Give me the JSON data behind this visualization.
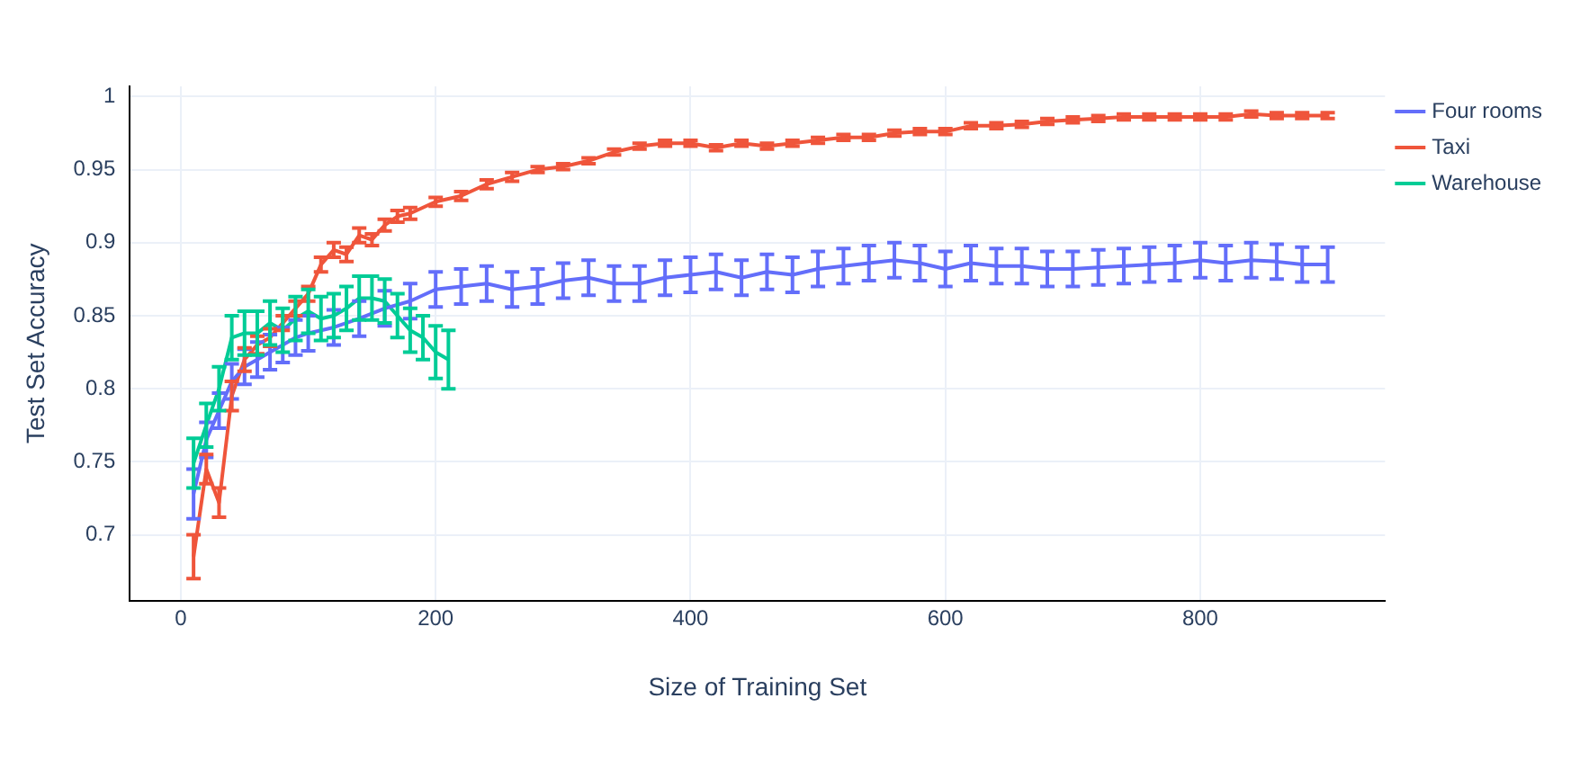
{
  "chart_data": {
    "type": "line",
    "xlabel": "Size of Training Set",
    "ylabel": "Test Set Accuracy",
    "xlim": [
      -40,
      945
    ],
    "ylim": [
      0.655,
      1.007
    ],
    "xticks": [
      0,
      200,
      400,
      600,
      800
    ],
    "yticks": [
      0.7,
      0.75,
      0.8,
      0.85,
      0.9,
      0.95,
      1
    ],
    "grid": true,
    "legend": "top right",
    "marker": "none",
    "line_style": "solid",
    "series": [
      {
        "name": "Four rooms",
        "color": "#636efa",
        "x": [
          10,
          20,
          30,
          40,
          50,
          60,
          70,
          80,
          90,
          100,
          120,
          140,
          160,
          180,
          200,
          220,
          240,
          260,
          280,
          300,
          320,
          340,
          360,
          380,
          400,
          420,
          440,
          460,
          480,
          500,
          520,
          540,
          560,
          580,
          600,
          620,
          640,
          660,
          680,
          700,
          720,
          740,
          760,
          780,
          800,
          820,
          840,
          860,
          880,
          900
        ],
        "values": [
          0.728,
          0.765,
          0.785,
          0.805,
          0.815,
          0.82,
          0.825,
          0.83,
          0.835,
          0.838,
          0.842,
          0.848,
          0.855,
          0.86,
          0.868,
          0.87,
          0.872,
          0.868,
          0.87,
          0.874,
          0.876,
          0.872,
          0.872,
          0.876,
          0.878,
          0.88,
          0.876,
          0.88,
          0.878,
          0.882,
          0.884,
          0.886,
          0.888,
          0.886,
          0.882,
          0.886,
          0.884,
          0.884,
          0.882,
          0.882,
          0.883,
          0.884,
          0.885,
          0.886,
          0.888,
          0.886,
          0.888,
          0.887,
          0.885,
          0.885
        ],
        "errors": [
          0.017,
          0.012,
          0.012,
          0.012,
          0.012,
          0.012,
          0.012,
          0.012,
          0.012,
          0.012,
          0.012,
          0.012,
          0.012,
          0.012,
          0.012,
          0.012,
          0.012,
          0.012,
          0.012,
          0.012,
          0.012,
          0.012,
          0.012,
          0.012,
          0.012,
          0.012,
          0.012,
          0.012,
          0.012,
          0.012,
          0.012,
          0.012,
          0.012,
          0.012,
          0.012,
          0.012,
          0.012,
          0.012,
          0.012,
          0.012,
          0.012,
          0.012,
          0.012,
          0.012,
          0.012,
          0.012,
          0.012,
          0.012,
          0.012,
          0.012
        ]
      },
      {
        "name": "Taxi",
        "color": "#ef553b",
        "x": [
          10,
          20,
          30,
          40,
          50,
          60,
          70,
          80,
          90,
          100,
          110,
          120,
          130,
          140,
          150,
          160,
          170,
          180,
          200,
          220,
          240,
          260,
          280,
          300,
          320,
          340,
          360,
          380,
          400,
          420,
          440,
          460,
          480,
          500,
          520,
          540,
          560,
          580,
          600,
          620,
          640,
          660,
          680,
          700,
          720,
          740,
          760,
          780,
          800,
          820,
          840,
          860,
          880,
          900
        ],
        "values": [
          0.685,
          0.745,
          0.722,
          0.795,
          0.82,
          0.83,
          0.835,
          0.845,
          0.855,
          0.865,
          0.885,
          0.895,
          0.892,
          0.905,
          0.902,
          0.912,
          0.918,
          0.92,
          0.928,
          0.932,
          0.94,
          0.945,
          0.95,
          0.952,
          0.956,
          0.962,
          0.966,
          0.968,
          0.968,
          0.965,
          0.968,
          0.966,
          0.968,
          0.97,
          0.972,
          0.972,
          0.975,
          0.976,
          0.976,
          0.98,
          0.98,
          0.981,
          0.983,
          0.984,
          0.985,
          0.986,
          0.986,
          0.986,
          0.986,
          0.986,
          0.988,
          0.987,
          0.987,
          0.987
        ],
        "errors": [
          0.015,
          0.01,
          0.01,
          0.01,
          0.008,
          0.006,
          0.006,
          0.005,
          0.005,
          0.005,
          0.005,
          0.005,
          0.005,
          0.005,
          0.004,
          0.004,
          0.004,
          0.004,
          0.003,
          0.003,
          0.003,
          0.003,
          0.002,
          0.002,
          0.002,
          0.002,
          0.002,
          0.002,
          0.002,
          0.002,
          0.002,
          0.002,
          0.002,
          0.002,
          0.002,
          0.002,
          0.002,
          0.002,
          0.002,
          0.002,
          0.002,
          0.002,
          0.002,
          0.002,
          0.002,
          0.002,
          0.002,
          0.002,
          0.002,
          0.002,
          0.002,
          0.002,
          0.002,
          0.002
        ]
      },
      {
        "name": "Warehouse",
        "color": "#00cc96",
        "x": [
          10,
          20,
          30,
          40,
          50,
          60,
          70,
          80,
          90,
          100,
          110,
          120,
          130,
          140,
          150,
          160,
          170,
          180,
          190,
          200,
          210
        ],
        "values": [
          0.749,
          0.775,
          0.8,
          0.835,
          0.838,
          0.838,
          0.845,
          0.84,
          0.848,
          0.853,
          0.848,
          0.85,
          0.855,
          0.862,
          0.862,
          0.86,
          0.85,
          0.84,
          0.835,
          0.825,
          0.82
        ],
        "errors": [
          0.017,
          0.015,
          0.015,
          0.015,
          0.015,
          0.015,
          0.015,
          0.015,
          0.015,
          0.015,
          0.015,
          0.015,
          0.015,
          0.015,
          0.015,
          0.015,
          0.015,
          0.015,
          0.015,
          0.018,
          0.02
        ]
      }
    ]
  }
}
